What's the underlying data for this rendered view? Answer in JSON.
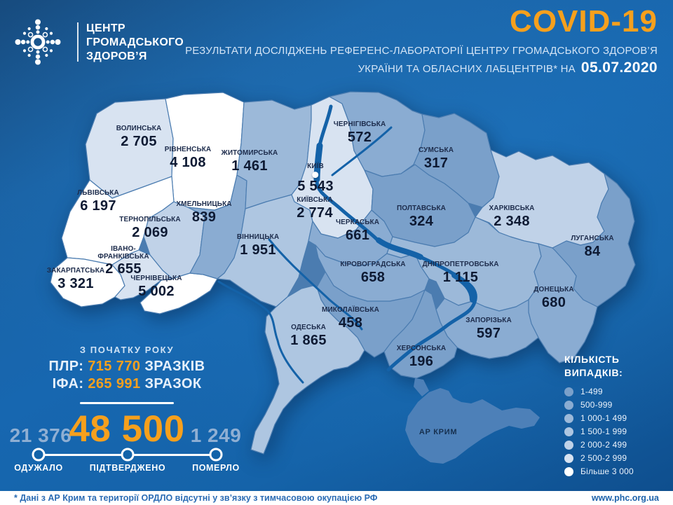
{
  "header": {
    "logo_lines": [
      "ЦЕНТР",
      "ГРОМАДСЬКОГО",
      "ЗДОРОВ’Я"
    ],
    "title": "COVID-19",
    "subtitle_line1": "РЕЗУЛЬТАТИ ДОСЛІДЖЕНЬ РЕФЕРЕНС-ЛАБОРАТОРІЇ ЦЕНТРУ ГРОМАДСЬКОГО ЗДОРОВ’Я",
    "subtitle_line2": "УКРАЇНИ ТА ОБЛАСНИХ ЛАБЦЕНТРІВ* НА",
    "date": "05.07.2020",
    "accent_color": "#F6A01D"
  },
  "summary": {
    "since_year_label": "З ПОЧАТКУ РОКУ",
    "pcr_label": "ПЛР:",
    "pcr_value": "715 770",
    "pcr_unit": "ЗРАЗКІВ",
    "elisa_label": "ІФА:",
    "elisa_value": "265 991",
    "elisa_unit": "ЗРАЗОК",
    "recovered_value": "21 376",
    "recovered_label": "ОДУЖАЛО",
    "confirmed_value": "48 500",
    "confirmed_label": "ПІДТВЕРДЖЕНО",
    "died_value": "1 249",
    "died_label": "ПОМЕРЛО"
  },
  "legend": {
    "title_line1": "КІЛЬКІСТЬ",
    "title_line2": "ВИПАДКІВ:",
    "buckets": [
      {
        "label": "1-499",
        "color": "#7AA0CA"
      },
      {
        "label": "500-999",
        "color": "#8AACD2"
      },
      {
        "label": "1 000-1 499",
        "color": "#9CB9D9"
      },
      {
        "label": "1 500-1 999",
        "color": "#AEC6E1"
      },
      {
        "label": "2 000-2 499",
        "color": "#C0D2E8"
      },
      {
        "label": "2 500-2 999",
        "color": "#D8E3F1"
      },
      {
        "label": "Більше 3 000",
        "color": "#FFFFFF"
      }
    ]
  },
  "map": {
    "no_data_color": "#4D80B8",
    "regions": [
      {
        "id": "volyn",
        "name": "ВОЛИНСЬКА",
        "value": "2 705",
        "bucket": 5
      },
      {
        "id": "rivne",
        "name": "РІВНЕНСЬКА",
        "value": "4 108",
        "bucket": 6
      },
      {
        "id": "lviv",
        "name": "ЛЬВІВСЬКА",
        "value": "6 197",
        "bucket": 6
      },
      {
        "id": "ternopil",
        "name": "ТЕРНОПІЛЬСЬКА",
        "value": "2 069",
        "bucket": 4
      },
      {
        "id": "ivano_frankivsk",
        "name": "ІВАНО-ФРАНКІВСЬКА",
        "value": "2 655",
        "bucket": 5
      },
      {
        "id": "zakarpattia",
        "name": "ЗАКАРПАТСЬКА",
        "value": "3 321",
        "bucket": 6
      },
      {
        "id": "chernivtsi",
        "name": "ЧЕРНІВЕЦЬКА",
        "value": "5 002",
        "bucket": 6
      },
      {
        "id": "khmelnytskyi",
        "name": "ХМЕЛЬНИЦЬКА",
        "value": "839",
        "bucket": 1
      },
      {
        "id": "zhytomyr",
        "name": "ЖИТОМИРСЬКА",
        "value": "1 461",
        "bucket": 2
      },
      {
        "id": "vinnytsia",
        "name": "ВІННИЦЬКА",
        "value": "1 951",
        "bucket": 3
      },
      {
        "id": "kyiv_city",
        "name": "КИЇВ",
        "value": "5 543",
        "bucket": 6
      },
      {
        "id": "kyiv",
        "name": "КИЇВСЬКА",
        "value": "2 774",
        "bucket": 5
      },
      {
        "id": "chernihiv",
        "name": "ЧЕРНІГІВСЬКА",
        "value": "572",
        "bucket": 1
      },
      {
        "id": "sumy",
        "name": "СУМСЬКА",
        "value": "317",
        "bucket": 0
      },
      {
        "id": "cherkasy",
        "name": "ЧЕРКАСЬКА",
        "value": "661",
        "bucket": 1
      },
      {
        "id": "poltava",
        "name": "ПОЛТАВСЬКА",
        "value": "324",
        "bucket": 0
      },
      {
        "id": "kharkiv",
        "name": "ХАРКІВСЬКА",
        "value": "2 348",
        "bucket": 4
      },
      {
        "id": "luhansk",
        "name": "ЛУГАНСЬКА",
        "value": "84",
        "bucket": 0
      },
      {
        "id": "kirovohrad",
        "name": "КІРОВОГРАДСЬКА",
        "value": "658",
        "bucket": 1
      },
      {
        "id": "dnipro",
        "name": "ДНІПРОПЕТРОВСЬКА",
        "value": "1 115",
        "bucket": 2
      },
      {
        "id": "donetsk",
        "name": "ДОНЕЦЬКА",
        "value": "680",
        "bucket": 1
      },
      {
        "id": "odesa",
        "name": "ОДЕСЬКА",
        "value": "1 865",
        "bucket": 3
      },
      {
        "id": "mykolaiv",
        "name": "МИКОЛАЇВСЬКА",
        "value": "458",
        "bucket": 0
      },
      {
        "id": "zaporizhzhia",
        "name": "ЗАПОРІЗЬКА",
        "value": "597",
        "bucket": 1
      },
      {
        "id": "kherson",
        "name": "ХЕРСОНСЬКА",
        "value": "196",
        "bucket": 0
      },
      {
        "id": "crimea",
        "name": "АР КРИМ",
        "value": "",
        "bucket": null
      }
    ]
  },
  "footer": {
    "note": "* Дані з АР Крим та території ОРДЛО відсутні у зв’язку з тимчасовою окупацією РФ",
    "website": "www.phc.org.ua"
  }
}
